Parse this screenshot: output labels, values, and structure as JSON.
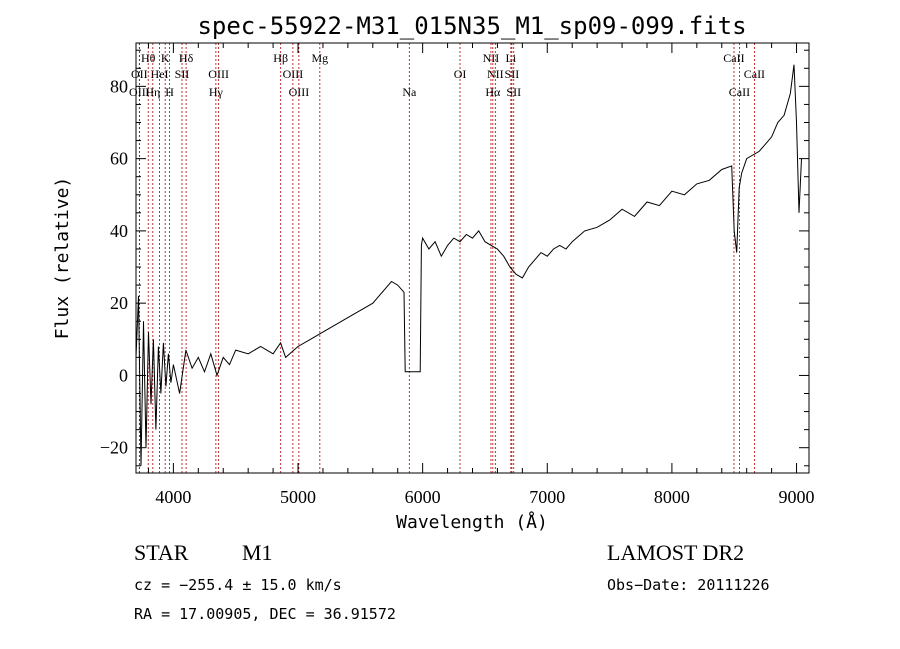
{
  "chart_data": {
    "type": "line",
    "title": "spec-55922-M31_015N35_M1_sp09-099.fits",
    "xlabel": "Wavelength (Å)",
    "ylabel": "Flux (relative)",
    "xlim": [
      3700,
      9100
    ],
    "ylim": [
      -27,
      92
    ],
    "x_ticks": [
      4000,
      5000,
      6000,
      7000,
      8000,
      9000
    ],
    "y_ticks": [
      -20,
      0,
      20,
      40,
      60,
      80
    ],
    "grid": false,
    "series": [
      {
        "x": [
          3700,
          3720,
          3740,
          3760,
          3780,
          3800,
          3820,
          3840,
          3860,
          3880,
          3900,
          3920,
          3940,
          3960,
          3980,
          4000,
          4050,
          4100,
          4150,
          4200,
          4250,
          4300,
          4350,
          4400,
          4450,
          4500,
          4600,
          4700,
          4800,
          4860,
          4900,
          5000,
          5100,
          5200,
          5300,
          5400,
          5500,
          5600,
          5700,
          5750,
          5800,
          5850,
          5860,
          5880,
          5980,
          5990,
          6000,
          6050,
          6100,
          6150,
          6200,
          6250,
          6300,
          6350,
          6400,
          6450,
          6500,
          6550,
          6600,
          6650,
          6700,
          6750,
          6800,
          6850,
          6900,
          6950,
          7000,
          7050,
          7100,
          7150,
          7200,
          7300,
          7400,
          7500,
          7600,
          7700,
          7800,
          7900,
          8000,
          8100,
          8200,
          8300,
          8400,
          8480,
          8500,
          8520,
          8540,
          8560,
          8600,
          8650,
          8700,
          8750,
          8800,
          8850,
          8900,
          8950,
          8980,
          9000,
          9020,
          9040
        ],
        "y": [
          5,
          22,
          -25,
          15,
          -20,
          12,
          -8,
          10,
          -15,
          8,
          -5,
          9,
          -3,
          6,
          -2,
          3,
          -5,
          7,
          2,
          5,
          1,
          6,
          0,
          5,
          3,
          7,
          6,
          8,
          6,
          9,
          5,
          8,
          10,
          12,
          14,
          16,
          18,
          20,
          24,
          26,
          25,
          23,
          1,
          1,
          1,
          36,
          38,
          35,
          37,
          33,
          36,
          38,
          37,
          39,
          38,
          40,
          37,
          36,
          35,
          33,
          30,
          28,
          27,
          30,
          32,
          34,
          33,
          35,
          36,
          35,
          37,
          40,
          41,
          43,
          46,
          44,
          48,
          47,
          51,
          50,
          53,
          54,
          57,
          58,
          40,
          34,
          52,
          56,
          60,
          61,
          62,
          64,
          66,
          70,
          72,
          78,
          86,
          70,
          45,
          60
        ]
      }
    ],
    "spectral_lines": [
      {
        "name": "Hθ",
        "x": 3798,
        "row": 1
      },
      {
        "name": "OII",
        "x": 3727,
        "row": 2
      },
      {
        "name": "OIII",
        "x": 3727,
        "row": 3
      },
      {
        "name": "K",
        "x": 3934,
        "row": 1
      },
      {
        "name": "HeI",
        "x": 3889,
        "row": 2
      },
      {
        "name": "Hη",
        "x": 3835,
        "row": 3
      },
      {
        "name": "Hδ",
        "x": 4102,
        "row": 1
      },
      {
        "name": "SII",
        "x": 4069,
        "row": 2
      },
      {
        "name": "H",
        "x": 3969,
        "row": 3
      },
      {
        "name": "OIII",
        "x": 4363,
        "row": 2
      },
      {
        "name": "Hγ",
        "x": 4341,
        "row": 3
      },
      {
        "name": "Hβ",
        "x": 4861,
        "row": 1
      },
      {
        "name": "OIII",
        "x": 4959,
        "row": 2
      },
      {
        "name": "OIII",
        "x": 5007,
        "row": 3
      },
      {
        "name": "Mg",
        "x": 5175,
        "row": 1
      },
      {
        "name": "Na",
        "x": 5893,
        "row": 3
      },
      {
        "name": "OI",
        "x": 6300,
        "row": 2
      },
      {
        "name": "NII",
        "x": 6548,
        "row": 1
      },
      {
        "name": "NII",
        "x": 6583,
        "row": 2
      },
      {
        "name": "Hα",
        "x": 6563,
        "row": 3
      },
      {
        "name": "Li",
        "x": 6708,
        "row": 1
      },
      {
        "name": "SII",
        "x": 6716,
        "row": 2
      },
      {
        "name": "SII",
        "x": 6731,
        "row": 3
      },
      {
        "name": "CaII",
        "x": 8498,
        "row": 1
      },
      {
        "name": "CaII",
        "x": 8542,
        "row": 3
      },
      {
        "name": "CaII",
        "x": 8662,
        "row": 2
      }
    ]
  },
  "info": {
    "object_class": "STAR",
    "subclass": "M1",
    "survey": "LAMOST DR2",
    "cz": "cz = −255.4 ± 15.0 km/s",
    "obs_date": "Obs−Date: 20111226",
    "coords": "RA =  17.00905, DEC =  36.91572"
  }
}
